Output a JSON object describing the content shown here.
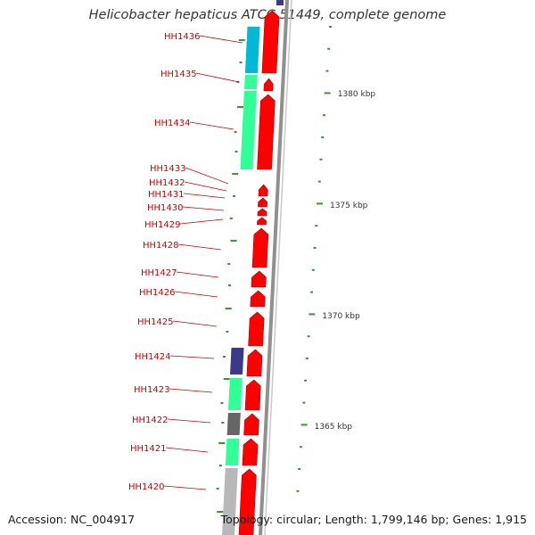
{
  "title": "Helicobacter hepaticus ATCC 51449, complete genome",
  "footer": {
    "accession": "Accession: NC_004917",
    "stats": "Topology: circular; Length: 1,799,146 bp; Genes: 1,915"
  },
  "colors": {
    "label": "#cc0000",
    "leader": "#cc0000",
    "tick": "#339933",
    "ruler": "#333333",
    "backbone": "#909090",
    "forward_track": "#ff0000",
    "cog_cyan": "#00b8d8",
    "cog_green": "#33ff99",
    "cog_navy": "#3a3a88",
    "cog_gray": "#666666",
    "cog_lightgray": "#b8b8b8"
  },
  "scale_labels": [
    "1380 kbp",
    "1375 kbp",
    "1370 kbp",
    "1365 kbp"
  ],
  "genes": [
    {
      "label": "HH1436",
      "strand": "-",
      "cog": "cog_cyan"
    },
    {
      "label": "HH1435",
      "strand": "-",
      "cog": "cog_green"
    },
    {
      "label": "HH1434",
      "strand": "-",
      "cog": "cog_green"
    },
    {
      "label": "HH1433",
      "strand": "-",
      "cog": ""
    },
    {
      "label": "HH1432",
      "strand": "-",
      "cog": ""
    },
    {
      "label": "HH1431",
      "strand": "-",
      "cog": ""
    },
    {
      "label": "HH1430",
      "strand": "-",
      "cog": ""
    },
    {
      "label": "HH1429",
      "strand": "-",
      "cog": ""
    },
    {
      "label": "HH1428",
      "strand": "-",
      "cog": ""
    },
    {
      "label": "HH1427",
      "strand": "-",
      "cog": ""
    },
    {
      "label": "HH1426",
      "strand": "-",
      "cog": ""
    },
    {
      "label": "HH1425",
      "strand": "-",
      "cog": ""
    },
    {
      "label": "HH1424",
      "strand": "-",
      "cog": "cog_navy"
    },
    {
      "label": "HH1423",
      "strand": "-",
      "cog": "cog_green"
    },
    {
      "label": "HH1422",
      "strand": "-",
      "cog": "cog_gray"
    },
    {
      "label": "HH1421",
      "strand": "-",
      "cog": "cog_green"
    },
    {
      "label": "HH1420",
      "strand": "-",
      "cog": "cog_lightgray"
    }
  ]
}
